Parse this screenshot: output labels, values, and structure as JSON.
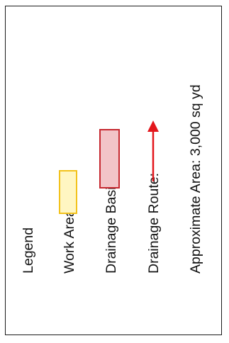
{
  "legend": {
    "title": "Legend",
    "items": [
      {
        "label": "Work Area:",
        "symbol": "swatch",
        "fill": "#fff6c2",
        "stroke": "#f2c21b"
      },
      {
        "label": "Drainage Basin:",
        "symbol": "swatch",
        "fill": "#f2c4c8",
        "stroke": "#c62830"
      },
      {
        "label": "Drainage Route:",
        "symbol": "arrow",
        "stroke": "#e3161c"
      }
    ],
    "area_note": "Approximate Area: 3,000 sq yd"
  }
}
